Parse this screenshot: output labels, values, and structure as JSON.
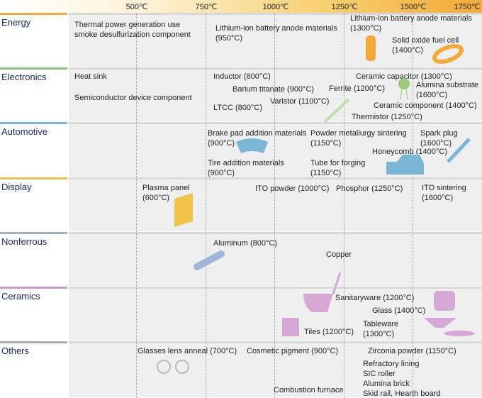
{
  "axis": {
    "ticks": [
      "500℃",
      "750℃",
      "1000℃",
      "1250℃",
      "1500℃",
      "1750℃"
    ]
  },
  "rows": [
    {
      "name": "Energy",
      "items": [
        "Thermal power generation use\nsmoke desulfurization component",
        "Lithium-ion battery anode materials\n(950°C)",
        "Lithium-ion battery anode materials\n(1300°C)",
        "Solid oxide fuel cell\n(1400°C)"
      ]
    },
    {
      "name": "Electronics",
      "items": [
        "Heat sink",
        "Semiconductor device component",
        "Inductor (800°C)",
        "Barium titanate (900°C)",
        "Varistor (1100°C)",
        "LTCC (800°C)",
        "Ferrite (1200°C)",
        "Ceramic capacitor (1300°C)",
        "Alumina substrate\n(1600°C)",
        "Ceramic component (1400°C)",
        "Thermistor (1250°C)"
      ]
    },
    {
      "name": "Automotive",
      "items": [
        "Brake pad addition materials\n(900°C)",
        "Powder metallurgy sintering\n(1150°C)",
        "Spark plug\n(1600°C)",
        "Honeycomb (1400°C)",
        "Tire addition materials\n(900°C)",
        "Tube for forging\n(1150°C)"
      ]
    },
    {
      "name": "Display",
      "items": [
        "Plasma panel\n(600°C)",
        "ITO powder (1000°C)",
        "Phosphor (1250°C)",
        "ITO sintering\n(1600°C)"
      ]
    },
    {
      "name": "Nonferrous",
      "items": [
        "Aluminum (800°C)",
        "Copper"
      ]
    },
    {
      "name": "Ceramics",
      "items": [
        "Sanitaryware (1200°C)",
        "Glass (1400°C)",
        "Tableware\n(1300°C)",
        "Tiles (1200°C)"
      ]
    },
    {
      "name": "Others",
      "items": [
        "Glasses lens anneal (700°C)",
        "Cosmetic pigment (900°C)",
        "Zirconia powder (1150°C)",
        "Refractory lining\nSIC roller\nAlumina brick\nSkid rail, Hearth board",
        "Combustion furnace"
      ]
    }
  ]
}
